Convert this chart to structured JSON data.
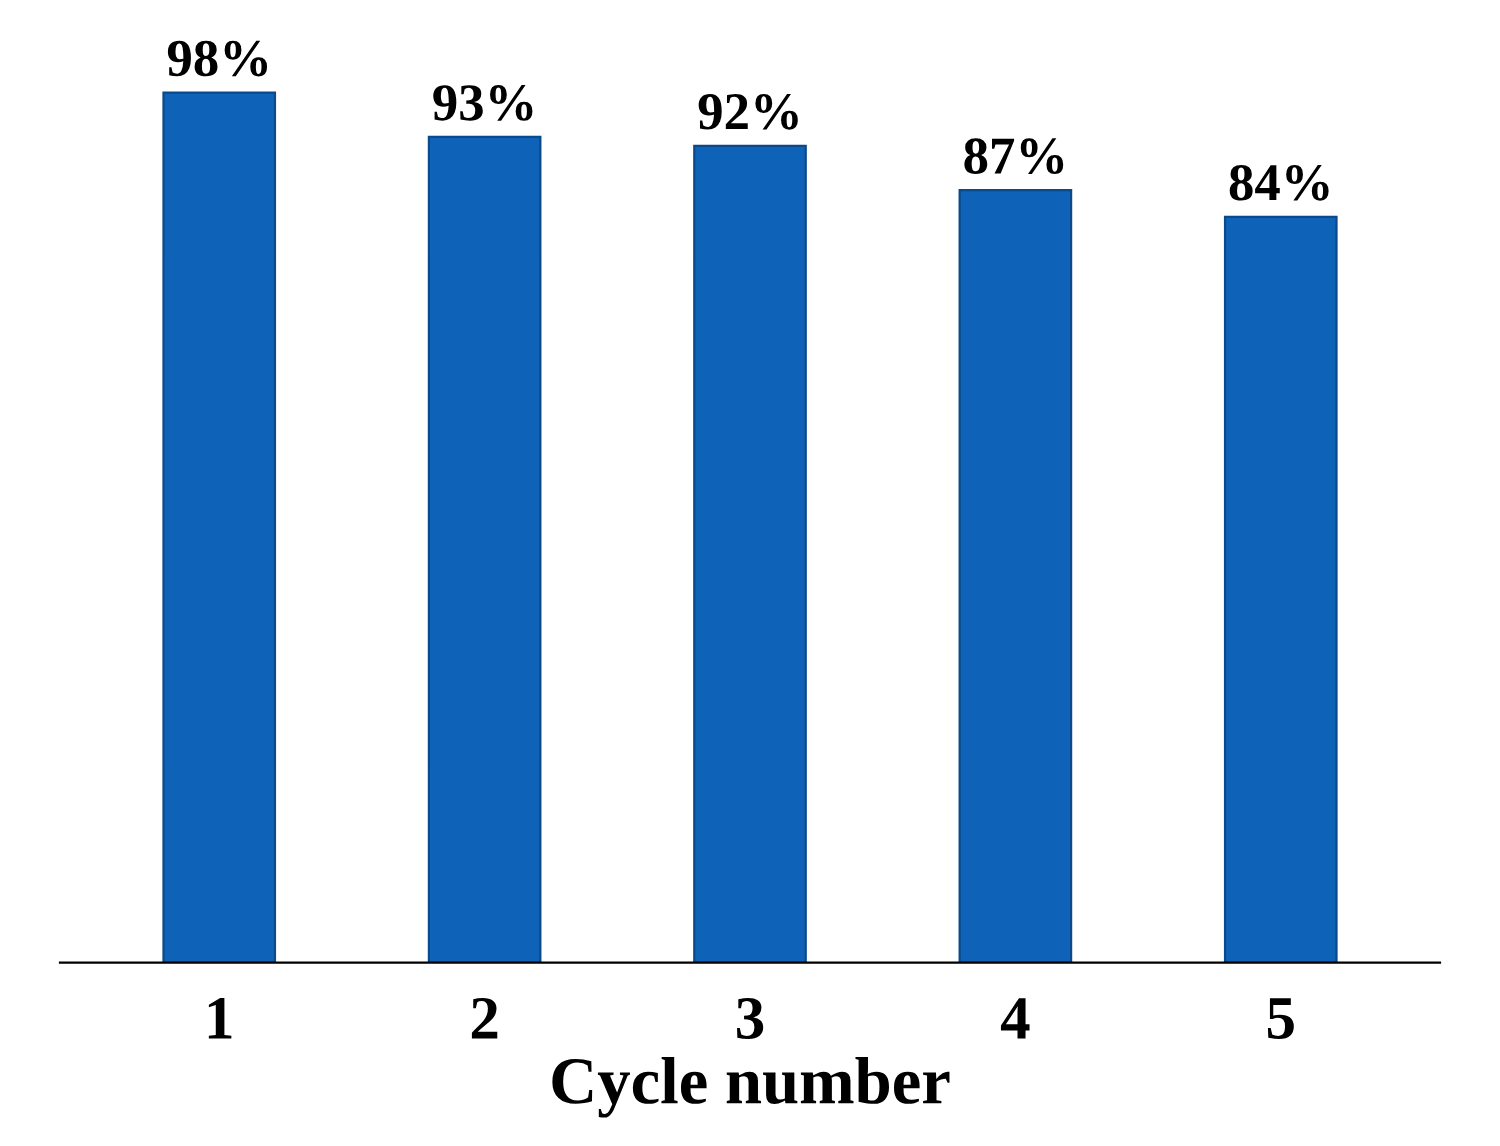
{
  "chart_data": {
    "type": "bar",
    "xlabel": "Cycle number",
    "categories": [
      "1",
      "2",
      "3",
      "4",
      "5"
    ],
    "values": [
      98,
      93,
      92,
      87,
      84
    ],
    "value_labels": [
      "98%",
      "93%",
      "92%",
      "87%",
      "84%"
    ],
    "color": "#0e63b8",
    "tick_labels": "x",
    "grid": false,
    "legend": false
  }
}
